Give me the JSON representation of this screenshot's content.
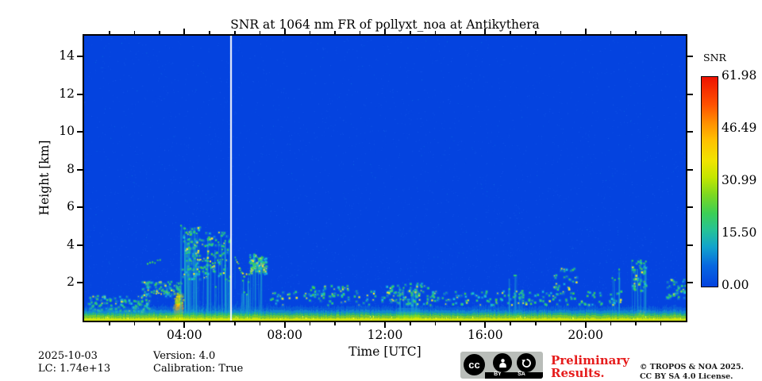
{
  "header": {
    "title": "SNR at 1064 nm FR of pollyxt_noa at Antikythera"
  },
  "footer": {
    "date": "2025-10-03",
    "lc": "LC: 1.74e+13",
    "version": "Version: 4.0",
    "calibration": "Calibration: True",
    "preliminary_line1": "Preliminary",
    "preliminary_line2": "Results.",
    "preliminary_color": "#e61c1c",
    "copyright_line1": "© TROPOS & NOA 2025.",
    "copyright_line2": "CC BY SA 4.0 License.",
    "license_badge": {
      "cc": "cc",
      "by": "BY",
      "sa": "SA"
    }
  },
  "chart_data": {
    "type": "heatmap",
    "title": "SNR at 1064 nm FR of pollyxt_noa at Antikythera",
    "xlabel": "Time [UTC]",
    "ylabel": "Height [km]",
    "x_range_hours": [
      0,
      24
    ],
    "y_range_km": [
      0,
      15.1
    ],
    "xticks": [
      {
        "hour": 4,
        "label": "04:00"
      },
      {
        "hour": 8,
        "label": "08:00"
      },
      {
        "hour": 12,
        "label": "12:00"
      },
      {
        "hour": 16,
        "label": "16:00"
      },
      {
        "hour": 20,
        "label": "20:00"
      }
    ],
    "xminor_every_hours": 1,
    "yticks": [
      {
        "km": 2,
        "label": "2"
      },
      {
        "km": 4,
        "label": "4"
      },
      {
        "km": 6,
        "label": "6"
      },
      {
        "km": 8,
        "label": "8"
      },
      {
        "km": 10,
        "label": "10"
      },
      {
        "km": 12,
        "label": "12"
      },
      {
        "km": 14,
        "label": "14"
      }
    ],
    "colorbar": {
      "label": "SNR",
      "vmin": 0,
      "vmax": 61.98,
      "ticks": [
        {
          "value": 61.98,
          "label": "61.98"
        },
        {
          "value": 46.49,
          "label": "46.49"
        },
        {
          "value": 30.99,
          "label": "30.99"
        },
        {
          "value": 15.5,
          "label": "15.50"
        },
        {
          "value": 0.0,
          "label": "0.00"
        }
      ]
    },
    "style": {
      "background": "#0443df"
    },
    "features": [
      {
        "type": "haze",
        "t": [
          0,
          6.3
        ],
        "h_top": 1.6,
        "alpha": 0.22
      },
      {
        "type": "haze",
        "t": [
          0,
          24
        ],
        "h_top": 0.75,
        "alpha": 0.1
      },
      {
        "type": "dots",
        "t": [
          0.1,
          2.6
        ],
        "h": [
          0.5,
          1.35
        ],
        "n": 110
      },
      {
        "type": "dots",
        "t": [
          2.3,
          3.6
        ],
        "h": [
          1.3,
          2.1
        ],
        "n": 70
      },
      {
        "type": "curve",
        "pts": [
          [
            2.5,
            3.05
          ],
          [
            3.0,
            3.2
          ]
        ]
      },
      {
        "type": "curve",
        "pts": [
          [
            2.75,
            1.45
          ],
          [
            3.55,
            1.6
          ]
        ]
      },
      {
        "type": "plume",
        "t": [
          3.5,
          3.98
        ],
        "h": [
          0,
          2.25
        ]
      },
      {
        "type": "vstreaks",
        "t": [
          3.8,
          4.75
        ],
        "h_top": [
          2.8,
          5.1
        ],
        "n": 26
      },
      {
        "type": "dots",
        "t": [
          3.9,
          4.8
        ],
        "h": [
          2.2,
          5.0
        ],
        "n": 90
      },
      {
        "type": "vstreaks",
        "t": [
          4.9,
          5.8
        ],
        "h_top": [
          1.8,
          4.6
        ],
        "n": 20
      },
      {
        "type": "dots",
        "t": [
          4.8,
          5.8
        ],
        "h": [
          2.2,
          4.8
        ],
        "n": 70
      },
      {
        "type": "curve",
        "pts": [
          [
            4.4,
            3.3
          ],
          [
            5.1,
            3.1
          ],
          [
            5.5,
            3.3
          ]
        ]
      },
      {
        "type": "curve",
        "pts": [
          [
            6.0,
            3.45
          ],
          [
            6.2,
            2.75
          ],
          [
            6.35,
            2.4
          ],
          [
            6.55,
            2.55
          ],
          [
            6.8,
            3.0
          ],
          [
            7.05,
            3.35
          ]
        ],
        "fuzz": true
      },
      {
        "type": "vstreaks",
        "t": [
          6.25,
          6.65
        ],
        "h_top": [
          1.4,
          2.3
        ],
        "n": 9
      },
      {
        "type": "dots",
        "t": [
          6.6,
          7.3
        ],
        "h": [
          2.5,
          3.5
        ],
        "n": 80,
        "dense": true
      },
      {
        "type": "vstreaks",
        "t": [
          6.6,
          7.1
        ],
        "h_top": [
          2.8,
          3.5
        ],
        "n": 10
      },
      {
        "type": "dots",
        "t": [
          7.4,
          21.5
        ],
        "h": [
          0.85,
          1.6
        ],
        "n": 240
      },
      {
        "type": "dots",
        "t": [
          9.0,
          10.5
        ],
        "h": [
          1.3,
          1.9
        ],
        "n": 40
      },
      {
        "type": "dots",
        "t": [
          12.0,
          13.7
        ],
        "h": [
          0.9,
          2.0
        ],
        "n": 70
      },
      {
        "type": "vstreaks",
        "t": [
          12.6,
          13.4
        ],
        "h_top": [
          0.9,
          1.8
        ],
        "n": 10
      },
      {
        "type": "surface_bright",
        "t": [
          12.5,
          13.4
        ]
      },
      {
        "type": "vstreaks",
        "t": [
          16.8,
          17.6
        ],
        "h_top": [
          1.4,
          2.6
        ],
        "n": 7
      },
      {
        "type": "dots",
        "t": [
          18.7,
          19.7
        ],
        "h": [
          1.4,
          2.8
        ],
        "n": 35
      },
      {
        "type": "vstreaks",
        "t": [
          20.9,
          21.35
        ],
        "h_top": [
          2.2,
          2.9
        ],
        "n": 5
      },
      {
        "type": "vstreaks",
        "t": [
          21.8,
          22.45
        ],
        "h_top": [
          2.5,
          3.3
        ],
        "n": 9
      },
      {
        "type": "dots",
        "t": [
          21.85,
          22.4
        ],
        "h": [
          1.5,
          3.2
        ],
        "n": 45
      },
      {
        "type": "dots",
        "t": [
          21.95,
          22.35
        ],
        "h": [
          0.12,
          0.55
        ],
        "n": 12,
        "palette": "hot"
      },
      {
        "type": "dots",
        "t": [
          23.2,
          23.95
        ],
        "h": [
          1.2,
          2.3
        ],
        "n": 40
      },
      {
        "type": "surface_band",
        "t": [
          0,
          24
        ],
        "top_km": 0.45
      },
      {
        "type": "gap",
        "t": 5.86
      }
    ]
  }
}
